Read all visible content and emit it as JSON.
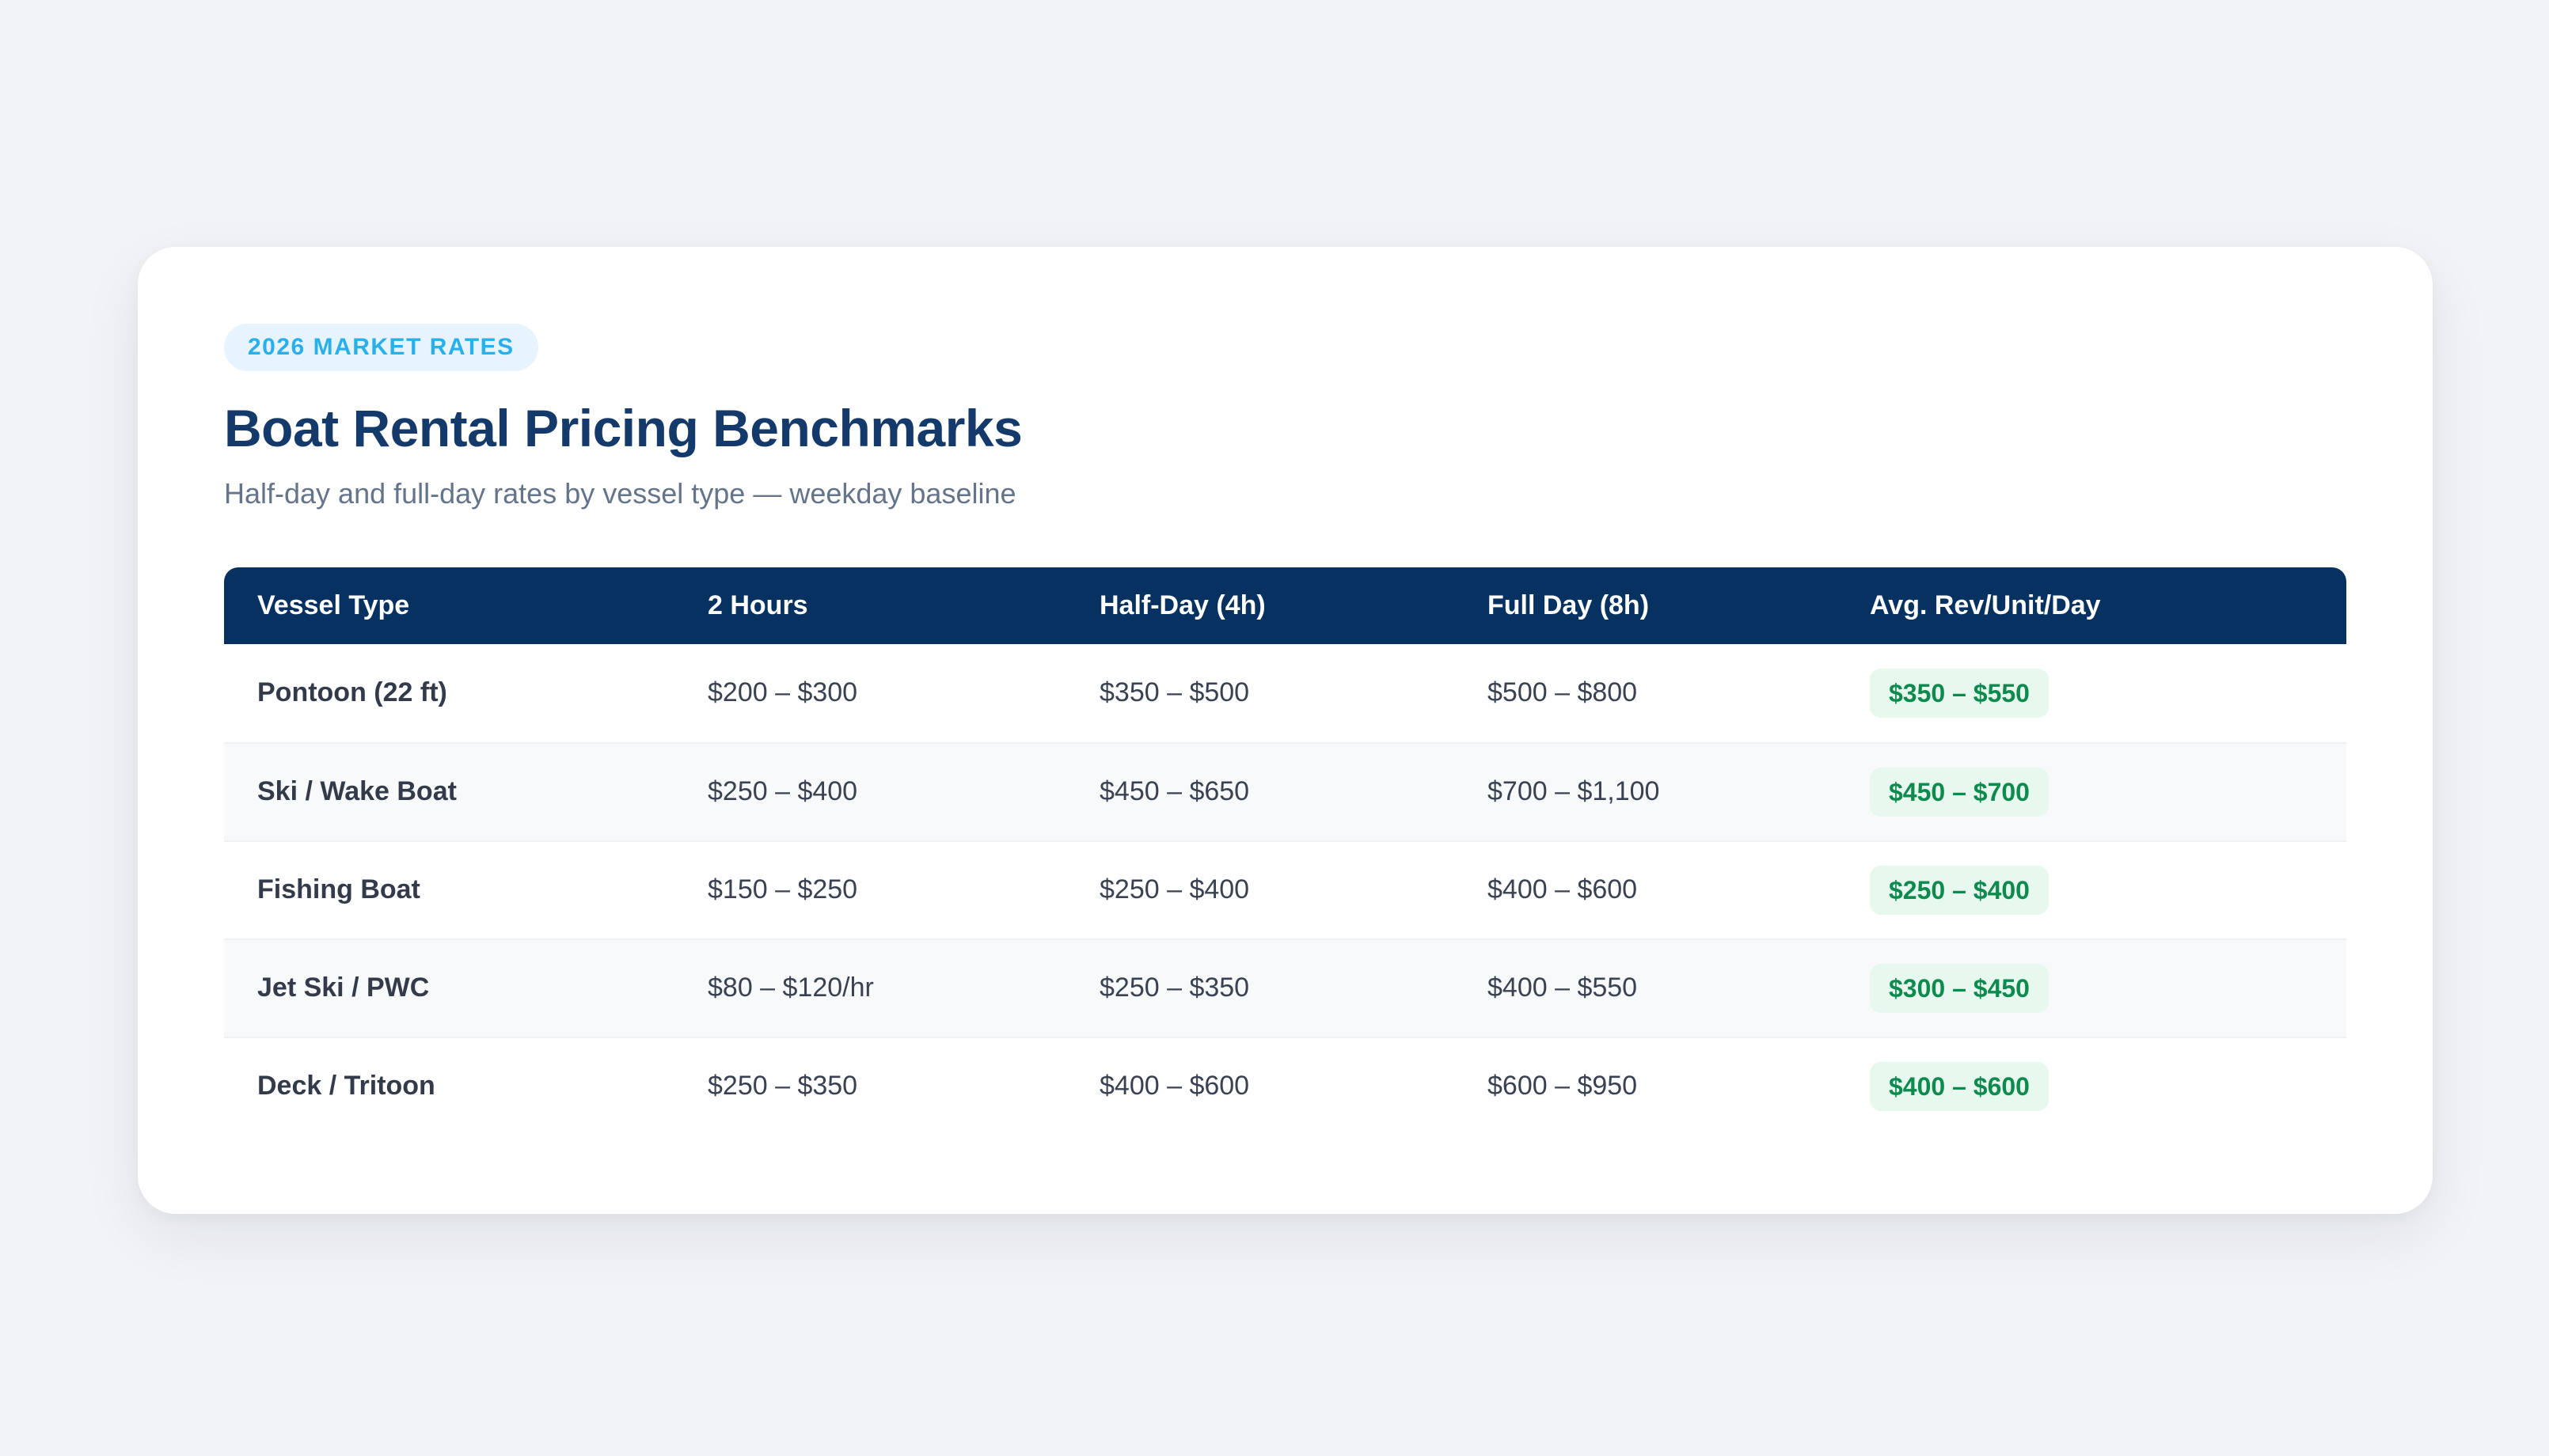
{
  "page": {
    "badge": "2026 MARKET RATES",
    "title": "Boat Rental Pricing Benchmarks",
    "subtitle": "Half-day and full-day rates by vessel type — weekday baseline"
  },
  "table": {
    "columns": [
      "Vessel Type",
      "2 Hours",
      "Half-Day (4h)",
      "Full Day (8h)",
      "Avg. Rev/Unit/Day"
    ],
    "rows": [
      {
        "vessel": "Pontoon (22 ft)",
        "two_hours": "$200 – $300",
        "half_day": "$350 – $500",
        "full_day": "$500 – $800",
        "avg_rev": "$350 – $550"
      },
      {
        "vessel": "Ski / Wake Boat",
        "two_hours": "$250 – $400",
        "half_day": "$450 – $650",
        "full_day": "$700 – $1,100",
        "avg_rev": "$450 – $700"
      },
      {
        "vessel": "Fishing Boat",
        "two_hours": "$150 – $250",
        "half_day": "$250 – $400",
        "full_day": "$400 – $600",
        "avg_rev": "$250 – $400"
      },
      {
        "vessel": "Jet Ski / PWC",
        "two_hours": "$80 – $120/hr",
        "half_day": "$250 – $350",
        "full_day": "$400 – $550",
        "avg_rev": "$300 – $450"
      },
      {
        "vessel": "Deck / Tritoon",
        "two_hours": "$250 – $350",
        "half_day": "$400 – $600",
        "full_day": "$600 – $950",
        "avg_rev": "$400 – $600"
      }
    ]
  },
  "colors": {
    "page_background": "#f1f3f6",
    "card_background": "#ffffff",
    "header_navy": "#073160",
    "title_navy": "#14396b",
    "badge_blue_text": "#29b0ea",
    "badge_blue_bg": "#e8f4fd",
    "rev_badge_green_text": "#0e8a4e",
    "rev_badge_green_bg": "#e7f8ef",
    "zebra_row_bg": "#f7f9fa",
    "body_text": "#3a4252",
    "subtitle_text": "#64748b"
  }
}
